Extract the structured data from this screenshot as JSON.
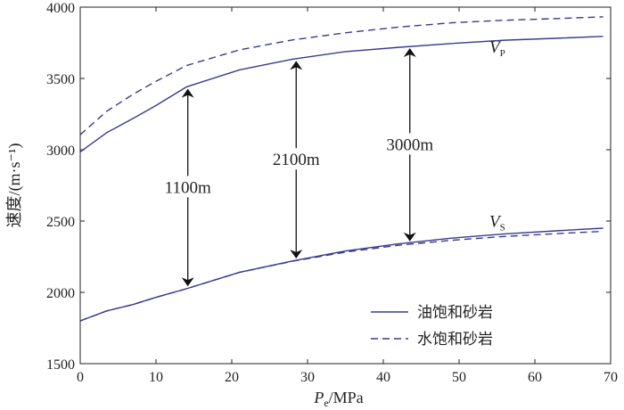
{
  "chart_data": {
    "type": "line",
    "title": "",
    "xlabel": {
      "main": "P",
      "sub": "e",
      "rest": "/MPa"
    },
    "ylabel": "速度/(m·s⁻¹)",
    "xlim": [
      0,
      70
    ],
    "ylim": [
      1500,
      4000
    ],
    "xticks": [
      0,
      10,
      20,
      30,
      40,
      50,
      60,
      70
    ],
    "yticks": [
      1500,
      2000,
      2500,
      3000,
      3500,
      4000
    ],
    "series": [
      {
        "name": "油饱和砂岩",
        "style": "solid",
        "color": "#3b3a8f",
        "x": [
          0,
          3.5,
          7,
          10,
          14,
          21,
          28,
          35,
          42,
          49,
          56,
          63,
          69
        ],
        "y": [
          2985,
          3120,
          3220,
          3310,
          3440,
          3560,
          3635,
          3688,
          3718,
          3745,
          3768,
          3782,
          3795
        ]
      },
      {
        "name": "水饱和砂岩",
        "style": "dashed",
        "color": "#3b3a8f",
        "x": [
          0,
          3.5,
          7,
          10,
          14,
          21,
          28,
          35,
          42,
          49,
          56,
          63,
          69
        ],
        "y": [
          3105,
          3270,
          3390,
          3480,
          3590,
          3700,
          3770,
          3820,
          3860,
          3890,
          3908,
          3920,
          3932
        ]
      },
      {
        "name": "油饱和砂岩",
        "style": "solid",
        "color": "#3b3a8f",
        "x": [
          0,
          3.5,
          7,
          10,
          14,
          21,
          28,
          35,
          42,
          49,
          56,
          63,
          69
        ],
        "y": [
          1800,
          1870,
          1915,
          1965,
          2025,
          2140,
          2220,
          2290,
          2340,
          2380,
          2410,
          2432,
          2450
        ]
      },
      {
        "name": "水饱和砂岩",
        "style": "dashed",
        "color": "#3b3a8f",
        "x": [
          0,
          3.5,
          7,
          10,
          14,
          21,
          28,
          35,
          42,
          49,
          56,
          63,
          69
        ],
        "y": [
          1800,
          1870,
          1915,
          1965,
          2025,
          2140,
          2218,
          2282,
          2330,
          2365,
          2392,
          2412,
          2428
        ]
      }
    ],
    "curve_labels": [
      {
        "main": "V",
        "sub": "P",
        "x": 54,
        "y": 3680
      },
      {
        "main": "V",
        "sub": "S",
        "x": 54,
        "y": 2460
      }
    ],
    "annotations": [
      {
        "label": "1100m",
        "x": 14.2,
        "y_top": 3440,
        "y_bottom": 2030
      },
      {
        "label": "2100m",
        "x": 28.5,
        "y_top": 3635,
        "y_bottom": 2225
      },
      {
        "label": "3000m",
        "x": 43.5,
        "y_top": 3725,
        "y_bottom": 2345
      }
    ],
    "legend": {
      "position": "bottom-right",
      "entries": [
        {
          "label": "油饱和砂岩",
          "style": "solid"
        },
        {
          "label": "水饱和砂岩",
          "style": "dashed"
        }
      ]
    }
  }
}
